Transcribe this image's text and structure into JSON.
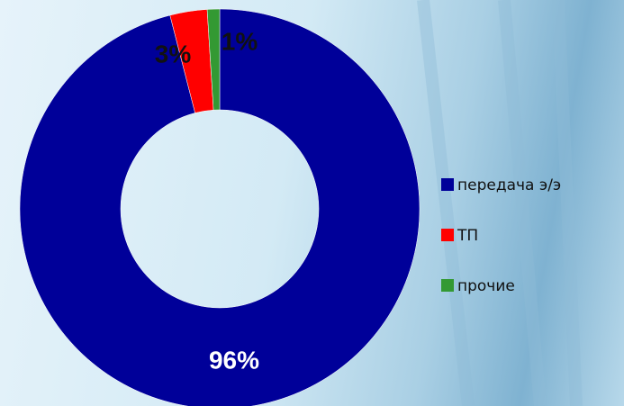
{
  "chart_data": {
    "type": "donut",
    "categories": [
      "передача э/э",
      "ТП",
      "прочие"
    ],
    "values": [
      96,
      3,
      1
    ],
    "value_labels": [
      "96%",
      "3%",
      "1%"
    ],
    "colors": [
      "#000099",
      "#ff0000",
      "#339933"
    ],
    "legend": "right"
  }
}
